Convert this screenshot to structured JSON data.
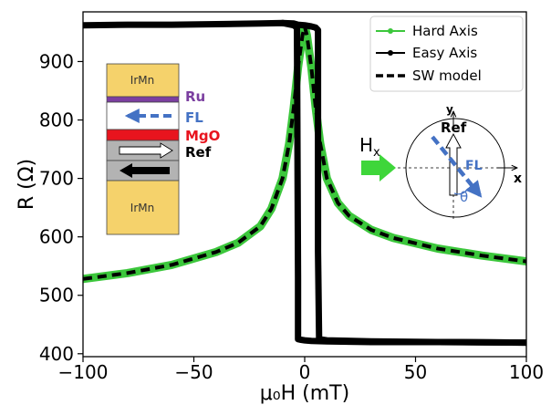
{
  "chart_data": {
    "type": "line",
    "xlabel": "μ₀H (mT)",
    "ylabel": "R (Ω)",
    "xlim": [
      -100,
      100
    ],
    "ylim": [
      395,
      985
    ],
    "xticks": [
      -100,
      -50,
      0,
      50,
      100
    ],
    "yticks": [
      400,
      500,
      600,
      700,
      800,
      900
    ],
    "grid": false,
    "legend_position": "top-right",
    "series": [
      {
        "name": "Hard Axis",
        "color": "#3cc73c",
        "marker": "dot",
        "x": [
          -100,
          -80,
          -60,
          -40,
          -30,
          -20,
          -15,
          -10,
          -7,
          -5,
          -3,
          -1,
          0,
          1,
          3,
          5,
          7,
          10,
          15,
          20,
          30,
          40,
          60,
          80,
          100
        ],
        "y": [
          528,
          538,
          552,
          574,
          590,
          618,
          648,
          700,
          760,
          820,
          890,
          945,
          960,
          945,
          890,
          820,
          760,
          700,
          658,
          636,
          612,
          598,
          580,
          568,
          558
        ]
      },
      {
        "name": "Easy Axis",
        "color": "#000000",
        "marker": "dot",
        "x": [
          -100,
          -80,
          -60,
          -40,
          -20,
          -10,
          -5,
          -3,
          0,
          3,
          5,
          6,
          6,
          6.5,
          10,
          30,
          60,
          100
        ],
        "y": [
          962,
          963,
          963,
          964,
          965,
          966,
          965,
          963,
          962,
          960,
          958,
          954,
          575,
          425,
          423,
          421,
          420,
          419
        ]
      },
      {
        "name": "Easy Axis",
        "color": "#000000",
        "marker": "dot",
        "x": [
          100,
          60,
          30,
          10,
          3,
          0,
          -2,
          -3,
          -3,
          -3.5,
          -5,
          -10
        ],
        "y": [
          419,
          420,
          420,
          421,
          422,
          423,
          424,
          425,
          528,
          958,
          962,
          966
        ]
      },
      {
        "name": "SW model",
        "color": "#000000",
        "dashed": true,
        "x": [
          -100,
          -80,
          -60,
          -40,
          -30,
          -20,
          -15,
          -10,
          -7,
          -5,
          -3,
          -1,
          0,
          1,
          3,
          5,
          7,
          10,
          15,
          20,
          30,
          40,
          60,
          80,
          100
        ],
        "y": [
          528,
          538,
          552,
          574,
          590,
          618,
          648,
          700,
          760,
          820,
          890,
          945,
          960,
          945,
          890,
          820,
          760,
          700,
          658,
          636,
          612,
          598,
          580,
          568,
          558
        ]
      }
    ],
    "legend": [
      "Hard Axis",
      "Easy Axis",
      "SW model"
    ]
  },
  "stack_inset": {
    "layers": {
      "top": "IrMn",
      "ru": "Ru",
      "fl": "FL",
      "mgo": "MgO",
      "ref": "Ref",
      "bottom": "IrMn"
    },
    "colors": {
      "irmn": "#f5d26b",
      "ru": "#7b3fa0",
      "mgo": "#e8141e",
      "ref": "#b3b3b3",
      "arrow": "#4472c4"
    }
  },
  "geometry_inset": {
    "field_label": "H",
    "field_subscript": "x",
    "y_axis": "y",
    "x_axis": "x",
    "ref_label": "Ref",
    "fl_label": "FL",
    "angle_label": "θ",
    "field_arrow_color": "#3ed63a",
    "fl_arrow_color": "#4472c4",
    "theta_color": "#4472c4"
  }
}
